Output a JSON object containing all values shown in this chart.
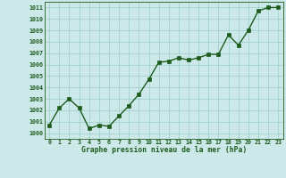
{
  "x": [
    0,
    1,
    2,
    3,
    4,
    5,
    6,
    7,
    8,
    9,
    10,
    11,
    12,
    13,
    14,
    15,
    16,
    17,
    18,
    19,
    20,
    21,
    22,
    23
  ],
  "y": [
    1000.7,
    1002.2,
    1003.0,
    1002.2,
    1000.4,
    1000.7,
    1000.6,
    1001.5,
    1002.4,
    1003.4,
    1004.7,
    1006.2,
    1006.3,
    1006.6,
    1006.4,
    1006.6,
    1006.9,
    1006.9,
    1008.6,
    1007.7,
    1009.0,
    1010.7,
    1011.0,
    1011.0
  ],
  "xlim": [
    -0.5,
    23.5
  ],
  "ylim": [
    999.5,
    1011.5
  ],
  "yticks": [
    1000,
    1001,
    1002,
    1003,
    1004,
    1005,
    1006,
    1007,
    1008,
    1009,
    1010,
    1011
  ],
  "xticks": [
    0,
    1,
    2,
    3,
    4,
    5,
    6,
    7,
    8,
    9,
    10,
    11,
    12,
    13,
    14,
    15,
    16,
    17,
    18,
    19,
    20,
    21,
    22,
    23
  ],
  "xlabel": "Graphe pression niveau de la mer (hPa)",
  "line_color": "#1e5c1e",
  "marker": "s",
  "marker_size": 2.2,
  "bg_color": "#cce8e8",
  "grid_color": "#99cccc",
  "tick_color": "#1e5c1e",
  "label_color": "#1e5c1e",
  "line_width": 1.0
}
